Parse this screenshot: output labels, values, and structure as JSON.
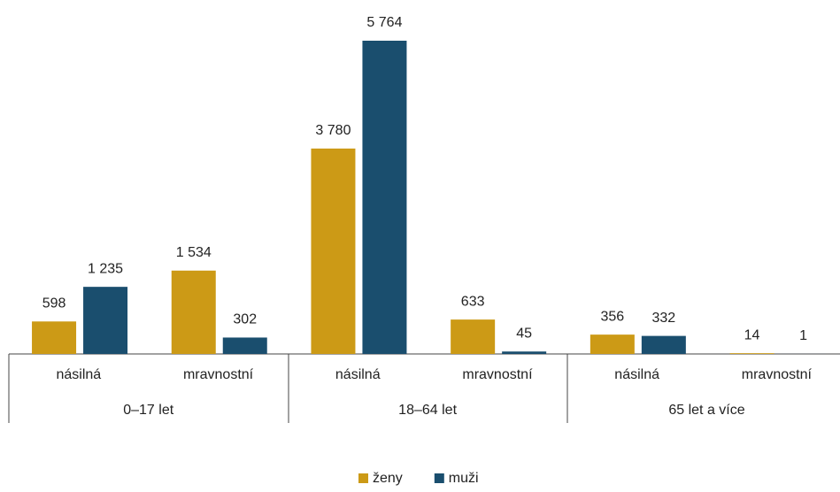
{
  "chart_data": {
    "type": "bar",
    "categories": [
      "násilná",
      "mravnostní",
      "násilná",
      "mravnostní",
      "násilná",
      "mravnostní"
    ],
    "groups": [
      "0–17 let",
      "18–64 let",
      "65 let a více"
    ],
    "series": [
      {
        "name": "ženy",
        "color": "#cc9a16",
        "values": [
          598,
          1534,
          3780,
          633,
          356,
          14
        ],
        "value_labels": [
          "598",
          "1 534",
          "3 780",
          "633",
          "356",
          "14"
        ]
      },
      {
        "name": "muži",
        "color": "#1a4e6e",
        "values": [
          1235,
          302,
          5764,
          45,
          332,
          1
        ],
        "value_labels": [
          "1 235",
          "302",
          "5 764",
          "45",
          "332",
          "1"
        ]
      }
    ]
  }
}
